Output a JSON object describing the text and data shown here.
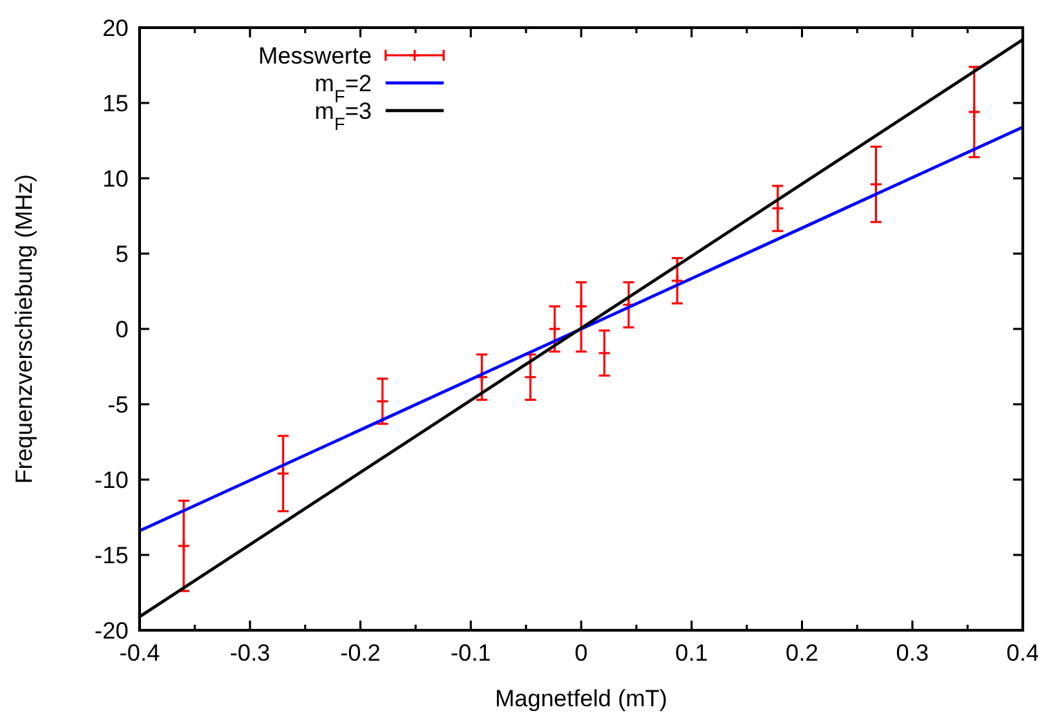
{
  "chart_data": {
    "type": "scatter",
    "xlabel": "Magnetfeld (mT)",
    "ylabel": "Frequenzverschiebung (MHz)",
    "xlim": [
      -0.4,
      0.4
    ],
    "xticks": [
      -0.4,
      -0.3,
      -0.2,
      -0.1,
      0,
      0.1,
      0.2,
      0.3,
      0.4
    ],
    "ylim": [
      -20,
      20
    ],
    "yticks": [
      -20,
      -15,
      -10,
      -5,
      0,
      5,
      10,
      15,
      20
    ],
    "grid": false,
    "legend": "top left",
    "series": [
      {
        "name": "Messwerte",
        "marker": "cross",
        "color": "#ff0000",
        "x": [
          -0.36,
          -0.27,
          -0.18,
          -0.09,
          -0.046,
          -0.024,
          0,
          0.021,
          0.043,
          0.087,
          0.178,
          0.267,
          0.356
        ],
        "values": [
          -14.4,
          -9.6,
          -4.8,
          -3.2,
          -3.2,
          0,
          1.5,
          -1.6,
          1.6,
          3.2,
          8,
          9.6,
          14.4
        ],
        "errors": [
          3,
          2.5,
          1.5,
          1.5,
          1.5,
          1.5,
          [
            -1.5,
            3.1
          ],
          1.5,
          1.5,
          1.5,
          1.5,
          2.5,
          3
        ]
      },
      {
        "name": "m$_{F}$=2",
        "type": "line",
        "color": "#0000ff",
        "x": [
          -0.4,
          0.4
        ],
        "values": [
          -13.4,
          13.4
        ]
      },
      {
        "name": "m$_{F}$=3",
        "type": "line",
        "color": "#000000",
        "x": [
          -0.4,
          0.4
        ],
        "values": [
          -19.1,
          19.2
        ]
      }
    ]
  }
}
